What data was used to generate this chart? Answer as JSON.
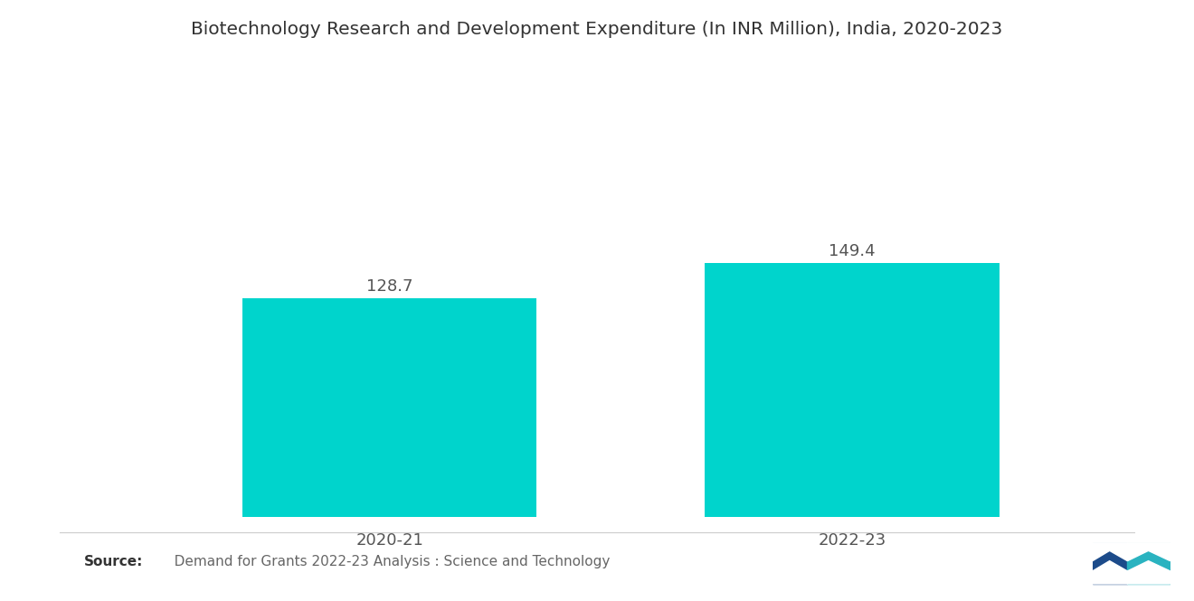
{
  "title": "Biotechnology Research and Development Expenditure (In INR Million), India, 2020-2023",
  "categories": [
    "2020-21",
    "2022-23"
  ],
  "values": [
    128.7,
    149.4
  ],
  "bar_color": "#00D4CC",
  "background_color": "#ffffff",
  "title_fontsize": 14.5,
  "label_fontsize": 13,
  "value_fontsize": 13,
  "source_bold": "Source:",
  "source_rest": "   Demand for Grants 2022-23 Analysis : Science and Technology",
  "ylim": [
    0,
    230
  ],
  "bar_width": 0.28,
  "x_positions": [
    0.28,
    0.72
  ]
}
